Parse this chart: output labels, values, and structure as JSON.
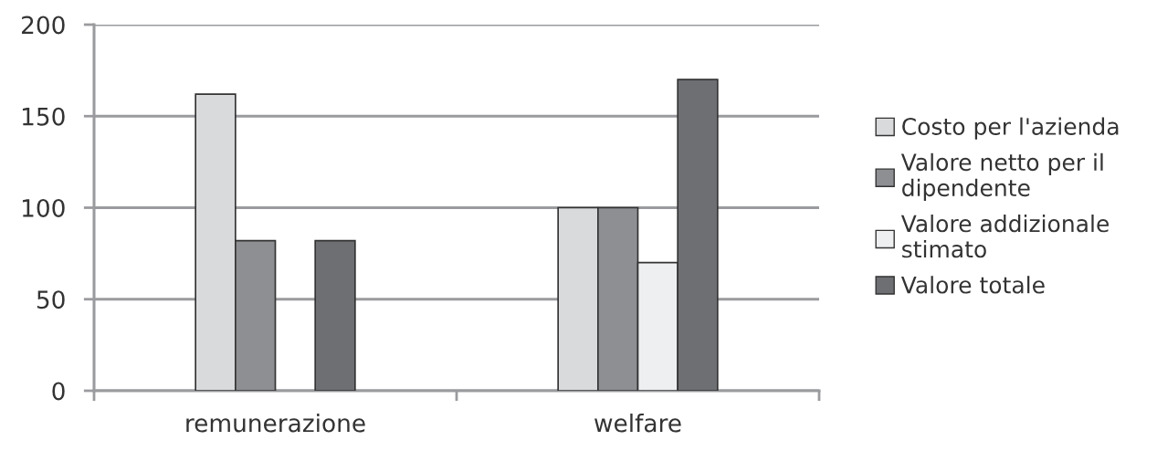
{
  "chart_data": {
    "type": "bar",
    "categories": [
      "remunerazione",
      "welfare"
    ],
    "series": [
      {
        "name": "Costo per l'azienda",
        "color": "#d9dadc",
        "values": [
          162,
          100
        ]
      },
      {
        "name": "Valore netto per il\ndipendente",
        "color": "#8e8f93",
        "values": [
          82,
          100
        ]
      },
      {
        "name": "Valore addizionale\nstimato",
        "color": "#eeeff0",
        "values": [
          null,
          70
        ]
      },
      {
        "name": "Valore totale",
        "color": "#6e6f73",
        "values": [
          82,
          170
        ]
      }
    ],
    "ylim": [
      0,
      200
    ],
    "yticks": [
      0,
      50,
      100,
      150,
      200
    ],
    "grid": "y",
    "legend": "right"
  }
}
